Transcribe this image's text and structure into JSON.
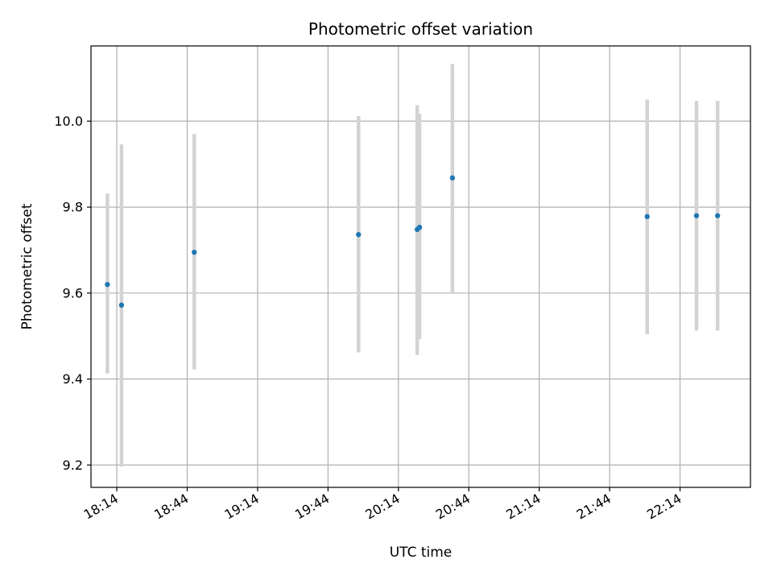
{
  "chart_data": {
    "type": "scatter",
    "title": "Photometric offset variation",
    "xlabel": "UTC time",
    "ylabel": "Photometric offset",
    "x_tick_labels": [
      "18:14",
      "18:44",
      "19:14",
      "19:44",
      "20:14",
      "20:44",
      "21:14",
      "21:44",
      "22:14"
    ],
    "x_tick_values": [
      "18:14",
      "18:44",
      "19:14",
      "19:44",
      "20:14",
      "20:44",
      "21:14",
      "21:44",
      "22:14"
    ],
    "xlim": [
      "18:03",
      "22:44"
    ],
    "y_tick_labels": [
      "9.2",
      "9.4",
      "9.6",
      "9.8",
      "10.0"
    ],
    "y_tick_values": [
      9.2,
      9.4,
      9.6,
      9.8,
      10.0
    ],
    "ylim": [
      9.148,
      10.175
    ],
    "grid": true,
    "colors": {
      "point": "#1f77b4",
      "errorbar": "#d3d3d3",
      "grid": "#b0b0b0"
    },
    "points": [
      {
        "x": "18:10",
        "y": 9.62,
        "y_low": 9.413,
        "y_high": 9.832
      },
      {
        "x": "18:16",
        "y": 9.572,
        "y_low": 9.196,
        "y_high": 9.946
      },
      {
        "x": "18:47",
        "y": 9.695,
        "y_low": 9.422,
        "y_high": 9.97
      },
      {
        "x": "19:57",
        "y": 9.736,
        "y_low": 9.462,
        "y_high": 10.012
      },
      {
        "x": "20:22",
        "y": 9.748,
        "y_low": 9.456,
        "y_high": 10.037
      },
      {
        "x": "20:23",
        "y": 9.753,
        "y_low": 9.493,
        "y_high": 10.017
      },
      {
        "x": "20:37",
        "y": 9.868,
        "y_low": 9.6,
        "y_high": 10.133
      },
      {
        "x": "22:00",
        "y": 9.778,
        "y_low": 9.504,
        "y_high": 10.05
      },
      {
        "x": "22:21",
        "y": 9.78,
        "y_low": 9.513,
        "y_high": 10.047
      },
      {
        "x": "22:30",
        "y": 9.78,
        "y_low": 9.513,
        "y_high": 10.047
      }
    ]
  }
}
